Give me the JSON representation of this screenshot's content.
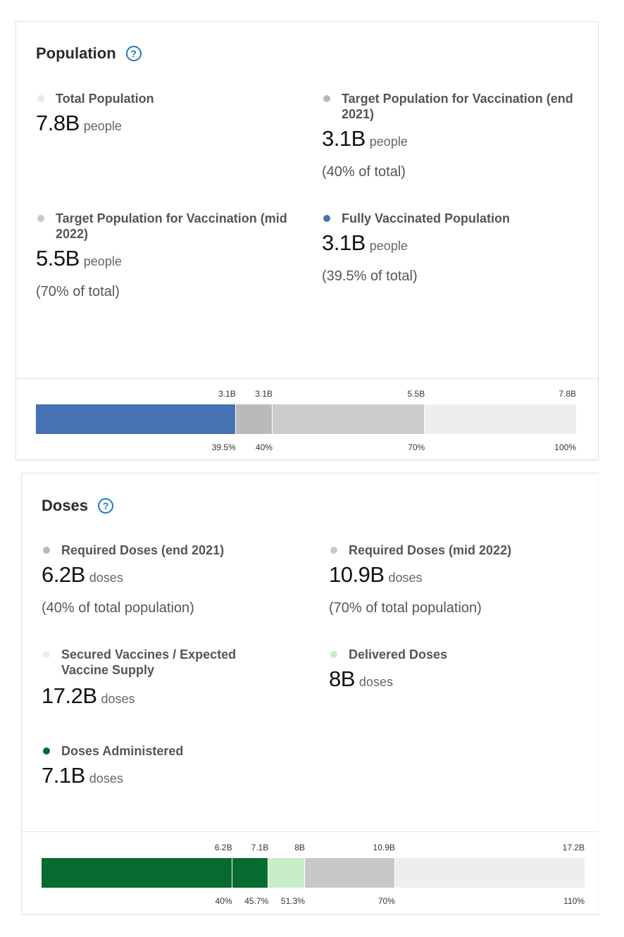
{
  "population": {
    "title": "Population",
    "help_icon": "question-circle-icon",
    "metrics": [
      {
        "label": "Total Population",
        "value": "7.8B",
        "unit": "people",
        "pct": "",
        "color": "#e8e8e8"
      },
      {
        "label": "Target Population for Vaccination (end 2021)",
        "value": "3.1B",
        "unit": "people",
        "pct": "(40% of total)",
        "color": "#b8b8b8"
      },
      {
        "label": "Target Population for Vaccination (mid 2022)",
        "value": "5.5B",
        "unit": "people",
        "pct": "(70% of total)",
        "color": "#c8c8c8"
      },
      {
        "label": "Fully Vaccinated Population",
        "value": "3.1B",
        "unit": "people",
        "pct": "(39.5% of total)",
        "color": "#4672b4"
      }
    ],
    "bar": {
      "max": 100,
      "segments": [
        {
          "name": "fully-vaccinated",
          "top_label": "3.1B",
          "bottom_label": "39.5%",
          "end": 37,
          "color": "#4672b4"
        },
        {
          "name": "target-end-2021",
          "top_label": "3.1B",
          "bottom_label": "40%",
          "end": 43.8,
          "color": "#bababa"
        },
        {
          "name": "target-mid-2022",
          "top_label": "5.5B",
          "bottom_label": "70%",
          "end": 72,
          "color": "#cbcbcb"
        },
        {
          "name": "total-population",
          "top_label": "7.8B",
          "bottom_label": "100%",
          "end": 100,
          "color": "#eeeeee"
        }
      ]
    }
  },
  "doses": {
    "title": "Doses",
    "help_icon": "question-circle-icon",
    "metrics": [
      {
        "label": "Required Doses (end 2021)",
        "value": "6.2B",
        "unit": "doses",
        "pct": "(40% of total population)",
        "color": "#b8b8b8"
      },
      {
        "label": "Required Doses (mid 2022)",
        "value": "10.9B",
        "unit": "doses",
        "pct": "(70% of total population)",
        "color": "#c8c8c8"
      },
      {
        "label": "Secured Vaccines / Expected Vaccine Supply",
        "value": "17.2B",
        "unit": "doses",
        "pct": "",
        "color": "#ececec"
      },
      {
        "label": "Delivered Doses",
        "value": "8B",
        "unit": "doses",
        "pct": "",
        "color": "#c6ecc8"
      },
      {
        "label": "Doses Administered",
        "value": "7.1B",
        "unit": "doses",
        "pct": "",
        "color": "#056b2e"
      }
    ],
    "bar": {
      "max": 100,
      "segments": [
        {
          "name": "required-end-2021",
          "top_label": "6.2B",
          "bottom_label": "40%",
          "end": 35.1,
          "color": "#056b2e"
        },
        {
          "name": "doses-administered",
          "top_label": "7.1B",
          "bottom_label": "45.7%",
          "end": 41.8,
          "color": "#056b2e"
        },
        {
          "name": "delivered-doses",
          "top_label": "8B",
          "bottom_label": "51.3%",
          "end": 48.5,
          "color": "#c6ecc8"
        },
        {
          "name": "required-mid-2022",
          "top_label": "10.9B",
          "bottom_label": "70%",
          "end": 65.1,
          "color": "#c8c8c8"
        },
        {
          "name": "secured-vaccines",
          "top_label": "17.2B",
          "bottom_label": "110%",
          "end": 100,
          "color": "#eeeeee"
        }
      ]
    }
  }
}
